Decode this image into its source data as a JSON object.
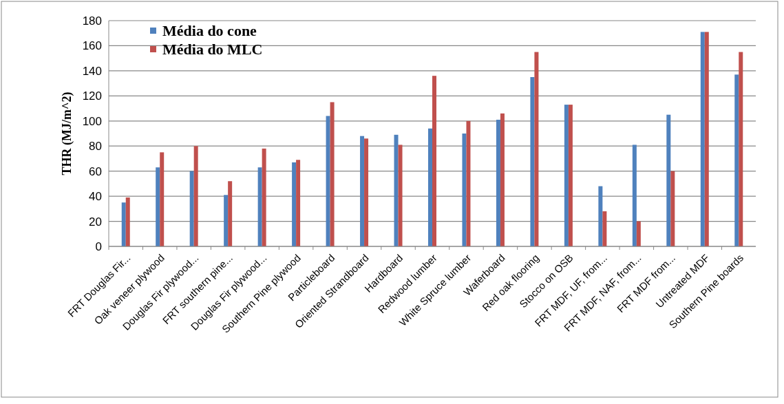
{
  "chart_data": {
    "type": "bar",
    "ylabel": "THR (MJ/m^2)",
    "categories": [
      "FRT Douglas Fir...",
      "Oak veneer plywood",
      "Douglas Fir plywood...",
      "FRT southern pine...",
      "Douglas Fir plywood...",
      "Southern Pine plywood",
      "Particleboard",
      "Oriented Strandboard",
      "Hardboard",
      "Redwood lumber",
      "White Spruce lumber",
      "Waferboard",
      "Red oak flooring",
      "Stocco on OSB",
      "FRT MDF, UF, from...",
      "FRT MDF, NAF, from...",
      "FRT MDF from...",
      "Untreated MDF",
      "Southern Pine boards"
    ],
    "series": [
      {
        "name": "Média do cone",
        "color": "#4f81bd",
        "values": [
          35,
          63,
          60,
          41,
          63,
          67,
          104,
          88,
          89,
          94,
          90,
          101,
          135,
          113,
          48,
          81,
          105,
          171,
          137
        ]
      },
      {
        "name": "Média do MLC",
        "color": "#c0504d",
        "values": [
          39,
          75,
          80,
          52,
          78,
          69,
          115,
          86,
          81,
          136,
          100,
          106,
          155,
          113,
          28,
          20,
          60,
          171,
          155
        ]
      }
    ],
    "ylim": [
      0,
      180
    ],
    "yticks": [
      0,
      20,
      40,
      60,
      80,
      100,
      120,
      140,
      160,
      180
    ],
    "grid": "y",
    "legend": "top left"
  }
}
